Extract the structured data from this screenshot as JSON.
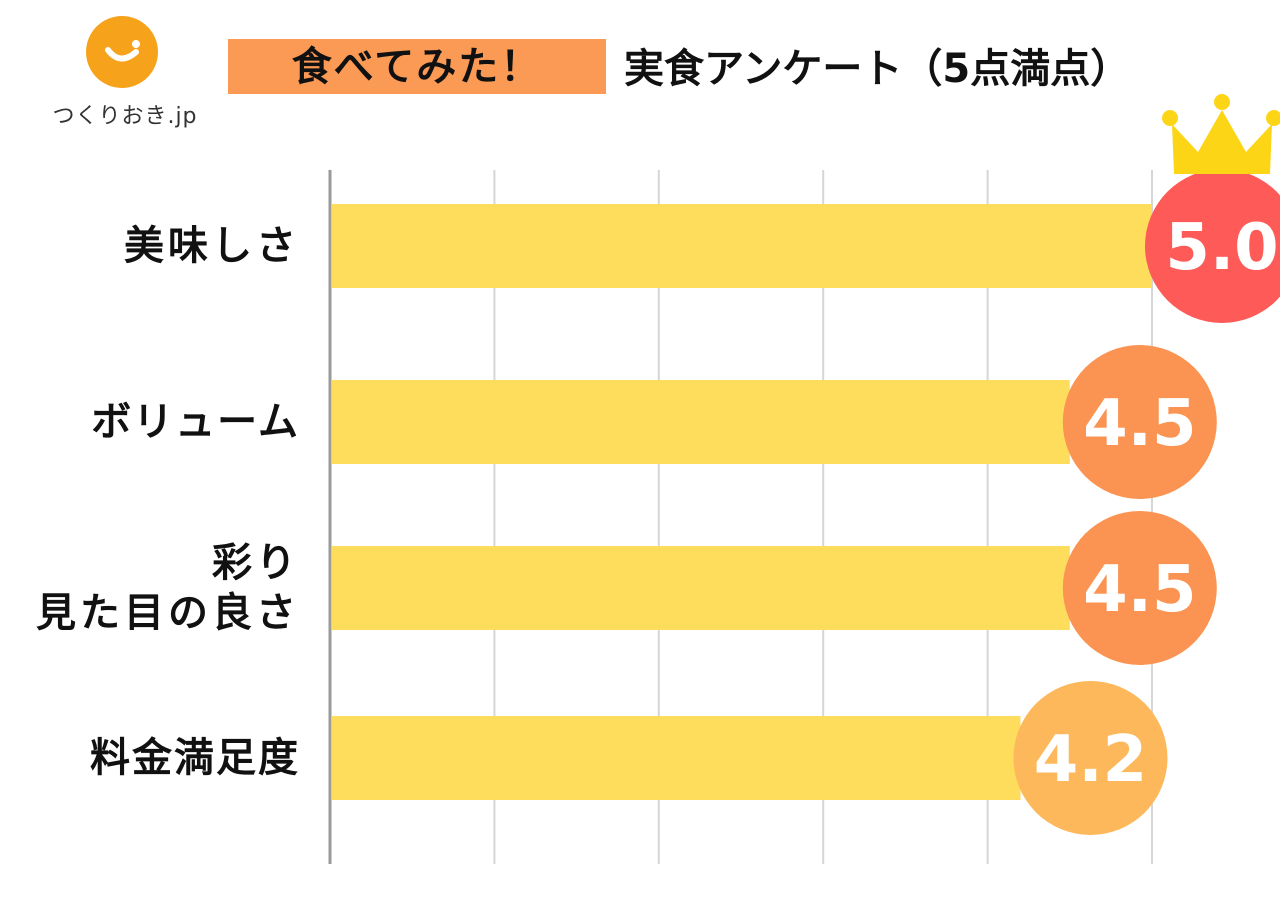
{
  "logo": {
    "text": "つくりおき.jp"
  },
  "title": {
    "main": "食べてみた！",
    "sub": "実食アンケート（5点満点）"
  },
  "colors": {
    "bar": "#fedd5c",
    "badge_top": "#fd5a58",
    "badge_mid": "#fb9452",
    "badge_low": "#fcb85a",
    "crown": "#fdd517",
    "grid": "#d6d6d6",
    "axis": "#9a9a9a"
  },
  "chart_data": {
    "type": "bar",
    "orientation": "horizontal",
    "categories": [
      "美味しさ",
      "ボリューム",
      "彩り\n見た目の良さ",
      "料金満足度"
    ],
    "values": [
      5.0,
      4.5,
      4.5,
      4.2
    ],
    "value_labels": [
      "5.0",
      "4.5",
      "4.5",
      "4.2"
    ],
    "xlim": [
      0,
      5
    ],
    "grid": true,
    "top_marker": "crown-icon"
  }
}
